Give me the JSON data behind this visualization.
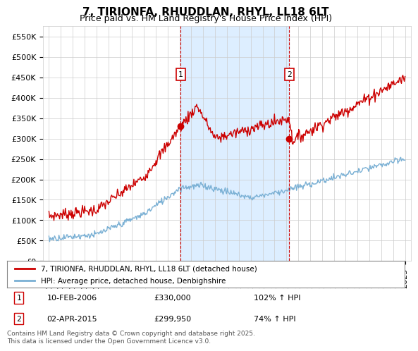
{
  "title": "7, TIRIONFA, RHUDDLAN, RHYL, LL18 6LT",
  "subtitle": "Price paid vs. HM Land Registry's House Price Index (HPI)",
  "ylim": [
    0,
    575000
  ],
  "yticks": [
    0,
    50000,
    100000,
    150000,
    200000,
    250000,
    300000,
    350000,
    400000,
    450000,
    500000,
    550000
  ],
  "ytick_labels": [
    "£0",
    "£50K",
    "£100K",
    "£150K",
    "£200K",
    "£250K",
    "£300K",
    "£350K",
    "£400K",
    "£450K",
    "£500K",
    "£550K"
  ],
  "background_color": "#ffffff",
  "plot_bg_color": "#ffffff",
  "shade_color": "#ddeeff",
  "grid_color": "#cccccc",
  "line1_color": "#cc0000",
  "line2_color": "#7ab0d4",
  "marker1_date": 2006.1,
  "marker2_date": 2015.25,
  "marker1_price": 330000,
  "marker2_price": 299950,
  "legend_label1": "7, TIRIONFA, RHUDDLAN, RHYL, LL18 6LT (detached house)",
  "legend_label2": "HPI: Average price, detached house, Denbighshire",
  "note1_date": "10-FEB-2006",
  "note1_price": "£330,000",
  "note1_hpi": "102% ↑ HPI",
  "note2_date": "02-APR-2015",
  "note2_price": "£299,950",
  "note2_hpi": "74% ↑ HPI",
  "footer": "Contains HM Land Registry data © Crown copyright and database right 2025.\nThis data is licensed under the Open Government Licence v3.0.",
  "title_fontsize": 11,
  "subtitle_fontsize": 9,
  "tick_fontsize": 8
}
